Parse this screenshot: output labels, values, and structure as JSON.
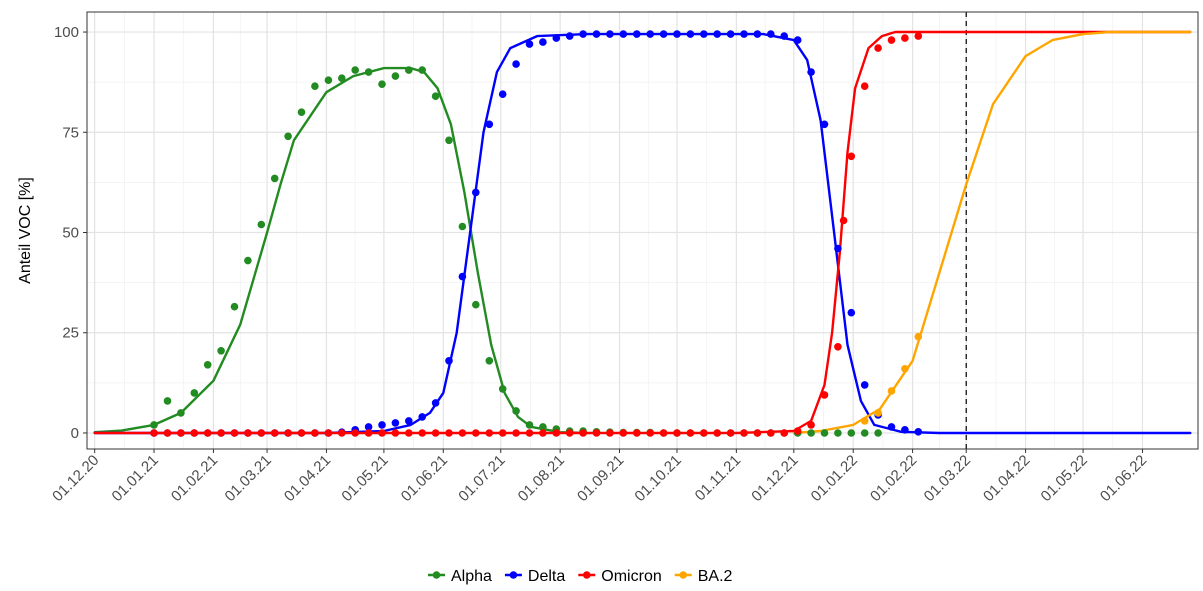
{
  "chart_data": {
    "type": "line",
    "title": "",
    "xlabel": "",
    "ylabel": "Anteil VOC [%]",
    "ylim": [
      -4,
      105
    ],
    "y_ticks": [
      0,
      25,
      50,
      75,
      100
    ],
    "x_ticks": [
      "01.12.20",
      "01.01.21",
      "01.02.21",
      "01.03.21",
      "01.04.21",
      "01.05.21",
      "01.06.21",
      "01.07.21",
      "01.08.21",
      "01.09.21",
      "01.10.21",
      "01.11.21",
      "01.12.21",
      "01.01.22",
      "01.02.22",
      "01.03.22",
      "01.04.22",
      "01.05.22",
      "01.06.22"
    ],
    "grid": true,
    "vertical_reference_line": "01.03.22",
    "legend_position": "bottom",
    "legend": [
      "Alpha",
      "Delta",
      "Omicron",
      "BA.2"
    ],
    "series": [
      {
        "name": "Alpha",
        "color": "#228B22",
        "points": [
          [
            "01.01.21",
            2
          ],
          [
            "08.01.21",
            8
          ],
          [
            "15.01.21",
            5
          ],
          [
            "22.01.21",
            10
          ],
          [
            "29.01.21",
            17
          ],
          [
            "05.02.21",
            20.5
          ],
          [
            "12.02.21",
            31.5
          ],
          [
            "19.02.21",
            43
          ],
          [
            "26.02.21",
            52
          ],
          [
            "05.03.21",
            63.5
          ],
          [
            "12.03.21",
            74
          ],
          [
            "19.03.21",
            80
          ],
          [
            "26.03.21",
            86.5
          ],
          [
            "02.04.21",
            88
          ],
          [
            "09.04.21",
            88.5
          ],
          [
            "16.04.21",
            90.5
          ],
          [
            "23.04.21",
            90
          ],
          [
            "30.04.21",
            87
          ],
          [
            "07.05.21",
            89
          ],
          [
            "14.05.21",
            90.5
          ],
          [
            "21.05.21",
            90.5
          ],
          [
            "28.05.21",
            84
          ],
          [
            "04.06.21",
            73
          ],
          [
            "11.06.21",
            51.5
          ],
          [
            "18.06.21",
            32
          ],
          [
            "25.06.21",
            18
          ],
          [
            "02.07.21",
            11
          ],
          [
            "09.07.21",
            5.5
          ],
          [
            "16.07.21",
            2
          ],
          [
            "23.07.21",
            1.5
          ],
          [
            "30.07.21",
            1
          ],
          [
            "06.08.21",
            0.5
          ],
          [
            "13.08.21",
            0.5
          ],
          [
            "20.08.21",
            0.3
          ],
          [
            "27.08.21",
            0.2
          ],
          [
            "03.09.21",
            0.1
          ],
          [
            "10.09.21",
            0.1
          ],
          [
            "17.09.21",
            0.1
          ],
          [
            "24.09.21",
            0
          ],
          [
            "01.10.21",
            0
          ],
          [
            "08.10.21",
            0
          ],
          [
            "15.10.21",
            0
          ],
          [
            "22.10.21",
            0
          ],
          [
            "29.10.21",
            0
          ],
          [
            "05.11.21",
            0
          ],
          [
            "12.11.21",
            0
          ],
          [
            "19.11.21",
            0
          ],
          [
            "26.11.21",
            0
          ],
          [
            "03.12.21",
            0
          ],
          [
            "10.12.21",
            0
          ],
          [
            "17.12.21",
            0
          ],
          [
            "24.12.21",
            0
          ],
          [
            "31.12.21",
            0
          ],
          [
            "07.01.22",
            0
          ],
          [
            "14.01.22",
            0
          ]
        ],
        "curve": [
          [
            "01.12.20",
            0.2
          ],
          [
            "15.12.20",
            0.6
          ],
          [
            "01.01.21",
            2
          ],
          [
            "15.01.21",
            5
          ],
          [
            "01.02.21",
            13
          ],
          [
            "15.02.21",
            27
          ],
          [
            "01.03.21",
            50
          ],
          [
            "08.03.21",
            62
          ],
          [
            "15.03.21",
            73
          ],
          [
            "01.04.21",
            85
          ],
          [
            "15.04.21",
            89
          ],
          [
            "01.05.21",
            91
          ],
          [
            "15.05.21",
            91
          ],
          [
            "22.05.21",
            90
          ],
          [
            "29.05.21",
            86
          ],
          [
            "05.06.21",
            77
          ],
          [
            "12.06.21",
            60
          ],
          [
            "19.06.21",
            40
          ],
          [
            "26.06.21",
            22
          ],
          [
            "03.07.21",
            10
          ],
          [
            "10.07.21",
            4
          ],
          [
            "17.07.21",
            1.5
          ],
          [
            "01.08.21",
            0.2
          ],
          [
            "15.08.21",
            0
          ]
        ]
      },
      {
        "name": "Delta",
        "color": "#0000FF",
        "points": [
          [
            "01.01.21",
            0
          ],
          [
            "08.01.21",
            0
          ],
          [
            "15.01.21",
            0
          ],
          [
            "22.01.21",
            0
          ],
          [
            "29.01.21",
            0
          ],
          [
            "05.02.21",
            0
          ],
          [
            "12.02.21",
            0
          ],
          [
            "19.02.21",
            0
          ],
          [
            "26.02.21",
            0
          ],
          [
            "05.03.21",
            0
          ],
          [
            "12.03.21",
            0
          ],
          [
            "19.03.21",
            0
          ],
          [
            "26.03.21",
            0
          ],
          [
            "02.04.21",
            0
          ],
          [
            "09.04.21",
            0.2
          ],
          [
            "16.04.21",
            0.8
          ],
          [
            "23.04.21",
            1.5
          ],
          [
            "30.04.21",
            2
          ],
          [
            "07.05.21",
            2.5
          ],
          [
            "14.05.21",
            3
          ],
          [
            "21.05.21",
            4
          ],
          [
            "28.05.21",
            7.5
          ],
          [
            "04.06.21",
            18
          ],
          [
            "11.06.21",
            39
          ],
          [
            "18.06.21",
            60
          ],
          [
            "25.06.21",
            77
          ],
          [
            "02.07.21",
            84.5
          ],
          [
            "09.07.21",
            92
          ],
          [
            "16.07.21",
            97
          ],
          [
            "23.07.21",
            97.5
          ],
          [
            "30.07.21",
            98.5
          ],
          [
            "06.08.21",
            99
          ],
          [
            "13.08.21",
            99.5
          ],
          [
            "20.08.21",
            99.5
          ],
          [
            "27.08.21",
            99.5
          ],
          [
            "03.09.21",
            99.5
          ],
          [
            "10.09.21",
            99.5
          ],
          [
            "17.09.21",
            99.5
          ],
          [
            "24.09.21",
            99.5
          ],
          [
            "01.10.21",
            99.5
          ],
          [
            "08.10.21",
            99.5
          ],
          [
            "15.10.21",
            99.5
          ],
          [
            "22.10.21",
            99.5
          ],
          [
            "29.10.21",
            99.5
          ],
          [
            "05.11.21",
            99.5
          ],
          [
            "12.11.21",
            99.5
          ],
          [
            "19.11.21",
            99.5
          ],
          [
            "26.11.21",
            99
          ],
          [
            "03.12.21",
            98
          ],
          [
            "10.12.21",
            90
          ],
          [
            "17.12.21",
            77
          ],
          [
            "24.12.21",
            46
          ],
          [
            "31.12.21",
            30
          ],
          [
            "07.01.22",
            12
          ],
          [
            "14.01.22",
            4.5
          ],
          [
            "21.01.22",
            1.5
          ],
          [
            "28.01.22",
            0.8
          ],
          [
            "04.02.22",
            0.3
          ]
        ],
        "curve": [
          [
            "01.12.20",
            0
          ],
          [
            "01.04.21",
            0
          ],
          [
            "01.05.21",
            0.5
          ],
          [
            "15.05.21",
            2
          ],
          [
            "25.05.21",
            5
          ],
          [
            "01.06.21",
            10
          ],
          [
            "08.06.21",
            25
          ],
          [
            "15.06.21",
            50
          ],
          [
            "22.06.21",
            75
          ],
          [
            "29.06.21",
            90
          ],
          [
            "06.07.21",
            96
          ],
          [
            "20.07.21",
            99
          ],
          [
            "15.08.21",
            99.5
          ],
          [
            "15.11.21",
            99.5
          ],
          [
            "01.12.21",
            98
          ],
          [
            "08.12.21",
            93
          ],
          [
            "15.12.21",
            78
          ],
          [
            "22.12.21",
            50
          ],
          [
            "29.12.21",
            22
          ],
          [
            "05.01.22",
            8
          ],
          [
            "12.01.22",
            2
          ],
          [
            "26.01.22",
            0.3
          ],
          [
            "15.02.22",
            0
          ],
          [
            "26.06.22",
            0
          ]
        ]
      },
      {
        "name": "Omicron",
        "color": "#FF0000",
        "points": [
          [
            "01.01.21",
            0
          ],
          [
            "08.01.21",
            0
          ],
          [
            "15.01.21",
            0
          ],
          [
            "22.01.21",
            0
          ],
          [
            "29.01.21",
            0
          ],
          [
            "05.02.21",
            0
          ],
          [
            "12.02.21",
            0
          ],
          [
            "19.02.21",
            0
          ],
          [
            "26.02.21",
            0
          ],
          [
            "05.03.21",
            0
          ],
          [
            "12.03.21",
            0
          ],
          [
            "19.03.21",
            0
          ],
          [
            "26.03.21",
            0
          ],
          [
            "02.04.21",
            0
          ],
          [
            "09.04.21",
            0
          ],
          [
            "16.04.21",
            0
          ],
          [
            "23.04.21",
            0
          ],
          [
            "30.04.21",
            0
          ],
          [
            "07.05.21",
            0
          ],
          [
            "14.05.21",
            0
          ],
          [
            "21.05.21",
            0
          ],
          [
            "28.05.21",
            0
          ],
          [
            "04.06.21",
            0
          ],
          [
            "11.06.21",
            0
          ],
          [
            "18.06.21",
            0
          ],
          [
            "25.06.21",
            0
          ],
          [
            "02.07.21",
            0
          ],
          [
            "09.07.21",
            0
          ],
          [
            "16.07.21",
            0
          ],
          [
            "23.07.21",
            0
          ],
          [
            "30.07.21",
            0
          ],
          [
            "06.08.21",
            0
          ],
          [
            "13.08.21",
            0
          ],
          [
            "20.08.21",
            0
          ],
          [
            "27.08.21",
            0
          ],
          [
            "03.09.21",
            0
          ],
          [
            "10.09.21",
            0
          ],
          [
            "17.09.21",
            0
          ],
          [
            "24.09.21",
            0
          ],
          [
            "01.10.21",
            0
          ],
          [
            "08.10.21",
            0
          ],
          [
            "15.10.21",
            0
          ],
          [
            "22.10.21",
            0
          ],
          [
            "29.10.21",
            0
          ],
          [
            "05.11.21",
            0
          ],
          [
            "12.11.21",
            0
          ],
          [
            "19.11.21",
            0
          ],
          [
            "26.11.21",
            0
          ],
          [
            "03.12.21",
            0.5
          ],
          [
            "10.12.21",
            2
          ],
          [
            "17.12.21",
            9.5
          ],
          [
            "24.12.21",
            21.5
          ],
          [
            "27.12.21",
            53
          ],
          [
            "31.12.21",
            69
          ],
          [
            "07.01.22",
            86.5
          ],
          [
            "14.01.22",
            96
          ],
          [
            "21.01.22",
            98
          ],
          [
            "28.01.22",
            98.5
          ],
          [
            "04.02.22",
            99
          ]
        ],
        "curve": [
          [
            "01.12.20",
            0
          ],
          [
            "01.11.21",
            0
          ],
          [
            "01.12.21",
            0.5
          ],
          [
            "10.12.21",
            3
          ],
          [
            "17.12.21",
            12
          ],
          [
            "21.12.21",
            25
          ],
          [
            "25.12.21",
            45
          ],
          [
            "29.12.21",
            70
          ],
          [
            "02.01.22",
            86
          ],
          [
            "09.01.22",
            96
          ],
          [
            "16.01.22",
            99
          ],
          [
            "23.01.22",
            100
          ],
          [
            "26.06.22",
            100
          ]
        ]
      },
      {
        "name": "BA.2",
        "color": "#FFA500",
        "points": [
          [
            "07.01.22",
            3
          ],
          [
            "14.01.22",
            5
          ],
          [
            "21.01.22",
            10.5
          ],
          [
            "28.01.22",
            16
          ],
          [
            "04.02.22",
            24
          ]
        ],
        "curve": [
          [
            "01.12.21",
            0
          ],
          [
            "15.12.21",
            0.5
          ],
          [
            "01.01.22",
            2
          ],
          [
            "15.01.22",
            6
          ],
          [
            "01.02.22",
            18
          ],
          [
            "15.02.22",
            40
          ],
          [
            "01.03.22",
            62
          ],
          [
            "15.03.22",
            82
          ],
          [
            "01.04.22",
            94
          ],
          [
            "15.04.22",
            98
          ],
          [
            "01.05.22",
            99.5
          ],
          [
            "15.05.22",
            100
          ],
          [
            "26.06.22",
            100
          ]
        ]
      }
    ]
  }
}
